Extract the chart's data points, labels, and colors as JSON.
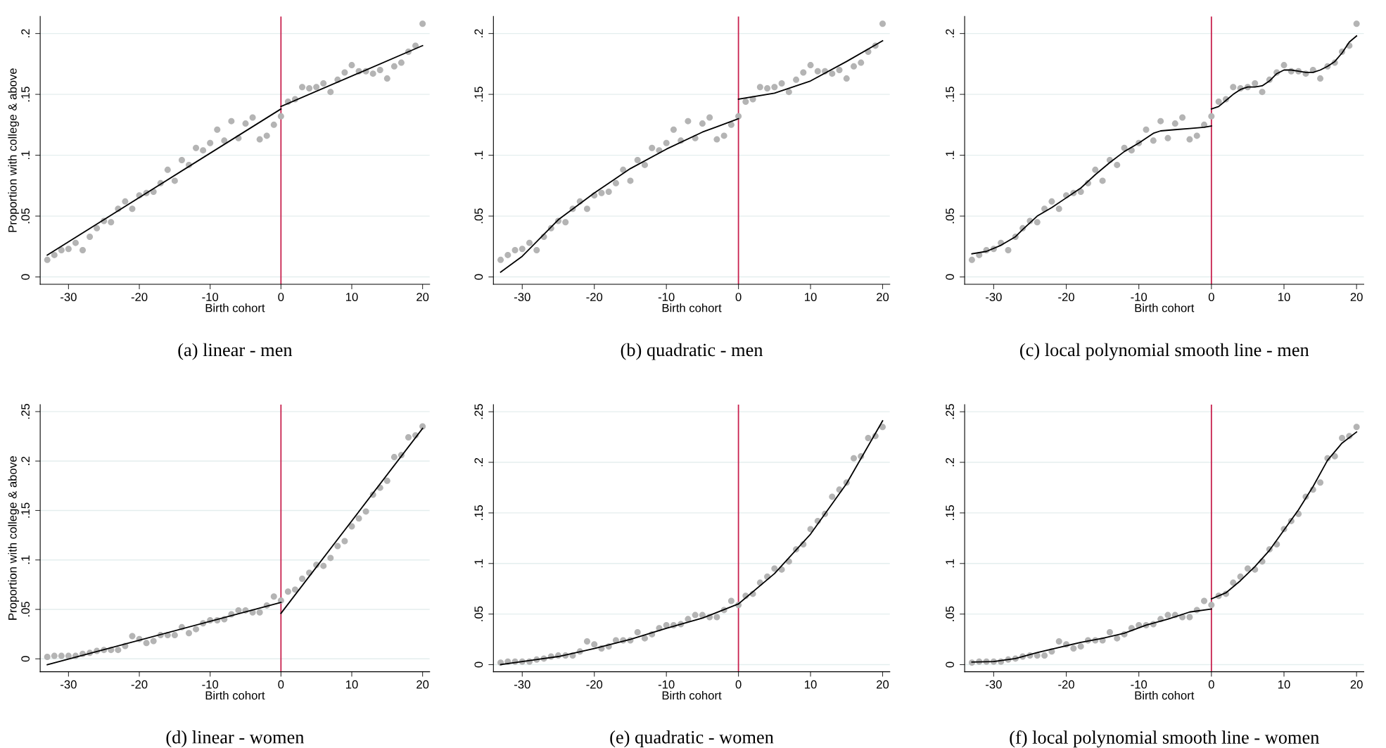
{
  "chart_data": [
    {
      "type": "scatter",
      "title": "(a) linear - men",
      "xlabel": "Birth cohort",
      "ylabel": "Proportion with college & above",
      "xlim": [
        -34,
        21
      ],
      "xticks": [
        -30,
        -20,
        -10,
        0,
        10,
        20
      ],
      "ylim": [
        -0.006,
        0.214
      ],
      "yticks": [
        {
          "value": 0,
          "label": "0"
        },
        {
          "value": 0.05,
          "label": ".05"
        },
        {
          "value": 0.1,
          "label": ".1"
        },
        {
          "value": 0.15,
          "label": ".15"
        },
        {
          "value": 0.2,
          "label": ".2"
        }
      ],
      "grid": "y",
      "x": [
        -33,
        -32,
        -31,
        -30,
        -29,
        -28,
        -27,
        -26,
        -25,
        -24,
        -23,
        -22,
        -21,
        -20,
        -19,
        -18,
        -17,
        -16,
        -15,
        -14,
        -13,
        -12,
        -11,
        -10,
        -9,
        -8,
        -7,
        -6,
        -5,
        -4,
        -3,
        -2,
        -1,
        0,
        1,
        2,
        3,
        4,
        5,
        6,
        7,
        8,
        9,
        10,
        11,
        12,
        13,
        14,
        15,
        16,
        17,
        18,
        19,
        20
      ],
      "series": [
        {
          "marker": "circle",
          "color": "#b4b4b4",
          "values": [
            0.014,
            0.018,
            0.022,
            0.023,
            0.028,
            0.022,
            0.033,
            0.04,
            0.046,
            0.045,
            0.056,
            0.062,
            0.056,
            0.067,
            0.069,
            0.07,
            0.077,
            0.088,
            0.079,
            0.096,
            0.092,
            0.106,
            0.104,
            0.11,
            0.121,
            0.112,
            0.128,
            0.114,
            0.126,
            0.131,
            0.113,
            0.116,
            0.125,
            0.132,
            0.144,
            0.146,
            0.156,
            0.155,
            0.156,
            0.159,
            0.152,
            0.162,
            0.168,
            0.174,
            0.169,
            0.169,
            0.167,
            0.17,
            0.163,
            0.173,
            0.176,
            0.185,
            0.19,
            0.208
          ]
        },
        {
          "type": "line",
          "color": "#000000",
          "x": [
            -33,
            0
          ],
          "values": [
            0.018,
            0.138
          ]
        },
        {
          "type": "line",
          "color": "#000000",
          "x": [
            0,
            20
          ],
          "values": [
            0.14,
            0.19
          ]
        }
      ],
      "ref_lines": [
        {
          "axis": "x",
          "value": 0,
          "color": "#c8224f"
        }
      ]
    },
    {
      "type": "scatter",
      "title": "(b) quadratic - men",
      "xlabel": "Birth cohort",
      "xlim": [
        -34,
        21
      ],
      "xticks": [
        -30,
        -20,
        -10,
        0,
        10,
        20
      ],
      "ylim": [
        -0.006,
        0.214
      ],
      "yticks": [
        {
          "value": 0,
          "label": "0"
        },
        {
          "value": 0.05,
          "label": ".05"
        },
        {
          "value": 0.1,
          "label": ".1"
        },
        {
          "value": 0.15,
          "label": ".15"
        },
        {
          "value": 0.2,
          "label": ".2"
        }
      ],
      "grid": "y",
      "x": [
        -33,
        -32,
        -31,
        -30,
        -29,
        -28,
        -27,
        -26,
        -25,
        -24,
        -23,
        -22,
        -21,
        -20,
        -19,
        -18,
        -17,
        -16,
        -15,
        -14,
        -13,
        -12,
        -11,
        -10,
        -9,
        -8,
        -7,
        -6,
        -5,
        -4,
        -3,
        -2,
        -1,
        0,
        1,
        2,
        3,
        4,
        5,
        6,
        7,
        8,
        9,
        10,
        11,
        12,
        13,
        14,
        15,
        16,
        17,
        18,
        19,
        20
      ],
      "series": [
        {
          "marker": "circle",
          "color": "#b4b4b4",
          "values": [
            0.014,
            0.018,
            0.022,
            0.023,
            0.028,
            0.022,
            0.033,
            0.04,
            0.046,
            0.045,
            0.056,
            0.062,
            0.056,
            0.067,
            0.069,
            0.07,
            0.077,
            0.088,
            0.079,
            0.096,
            0.092,
            0.106,
            0.104,
            0.11,
            0.121,
            0.112,
            0.128,
            0.114,
            0.126,
            0.131,
            0.113,
            0.116,
            0.125,
            0.132,
            0.144,
            0.146,
            0.156,
            0.155,
            0.156,
            0.159,
            0.152,
            0.162,
            0.168,
            0.174,
            0.169,
            0.169,
            0.167,
            0.17,
            0.163,
            0.173,
            0.176,
            0.185,
            0.19,
            0.208
          ]
        },
        {
          "type": "line",
          "color": "#000000",
          "x": [
            -33,
            -30,
            -25,
            -20,
            -15,
            -10,
            -5,
            0
          ],
          "values": [
            0.004,
            0.017,
            0.047,
            0.069,
            0.089,
            0.105,
            0.119,
            0.13
          ]
        },
        {
          "type": "line",
          "color": "#000000",
          "x": [
            0,
            5,
            10,
            15,
            20
          ],
          "values": [
            0.146,
            0.151,
            0.161,
            0.177,
            0.194
          ]
        }
      ],
      "ref_lines": [
        {
          "axis": "x",
          "value": 0,
          "color": "#c8224f"
        }
      ]
    },
    {
      "type": "scatter",
      "title": "(c) local polynomial smooth line - men",
      "xlabel": "Birth cohort",
      "xlim": [
        -34,
        21
      ],
      "xticks": [
        -30,
        -20,
        -10,
        0,
        10,
        20
      ],
      "ylim": [
        -0.006,
        0.214
      ],
      "yticks": [
        {
          "value": 0,
          "label": "0"
        },
        {
          "value": 0.05,
          "label": ".05"
        },
        {
          "value": 0.1,
          "label": ".1"
        },
        {
          "value": 0.15,
          "label": ".15"
        },
        {
          "value": 0.2,
          "label": ".2"
        }
      ],
      "grid": "y",
      "x": [
        -33,
        -32,
        -31,
        -30,
        -29,
        -28,
        -27,
        -26,
        -25,
        -24,
        -23,
        -22,
        -21,
        -20,
        -19,
        -18,
        -17,
        -16,
        -15,
        -14,
        -13,
        -12,
        -11,
        -10,
        -9,
        -8,
        -7,
        -6,
        -5,
        -4,
        -3,
        -2,
        -1,
        0,
        1,
        2,
        3,
        4,
        5,
        6,
        7,
        8,
        9,
        10,
        11,
        12,
        13,
        14,
        15,
        16,
        17,
        18,
        19,
        20
      ],
      "series": [
        {
          "marker": "circle",
          "color": "#b4b4b4",
          "values": [
            0.014,
            0.018,
            0.022,
            0.023,
            0.028,
            0.022,
            0.033,
            0.04,
            0.046,
            0.045,
            0.056,
            0.062,
            0.056,
            0.067,
            0.069,
            0.07,
            0.077,
            0.088,
            0.079,
            0.096,
            0.092,
            0.106,
            0.104,
            0.11,
            0.121,
            0.112,
            0.128,
            0.114,
            0.126,
            0.131,
            0.113,
            0.116,
            0.125,
            0.132,
            0.144,
            0.146,
            0.156,
            0.155,
            0.156,
            0.159,
            0.152,
            0.162,
            0.168,
            0.174,
            0.169,
            0.169,
            0.167,
            0.17,
            0.163,
            0.173,
            0.176,
            0.185,
            0.19,
            0.208
          ]
        },
        {
          "type": "line",
          "color": "#000000",
          "x": [
            -33,
            -31,
            -29,
            -27,
            -26,
            -24,
            -22,
            -20,
            -18,
            -16,
            -14,
            -12,
            -10,
            -8,
            -7,
            -5,
            -3,
            -1,
            0
          ],
          "values": [
            0.019,
            0.021,
            0.026,
            0.033,
            0.039,
            0.05,
            0.057,
            0.065,
            0.073,
            0.084,
            0.094,
            0.103,
            0.11,
            0.118,
            0.12,
            0.121,
            0.122,
            0.123,
            0.124
          ]
        },
        {
          "type": "line",
          "color": "#000000",
          "x": [
            0,
            1,
            2,
            3,
            4,
            5,
            6,
            7,
            8,
            9,
            10,
            11,
            12,
            13,
            14,
            15,
            16,
            17,
            18,
            19,
            20
          ],
          "values": [
            0.138,
            0.14,
            0.145,
            0.15,
            0.154,
            0.156,
            0.156,
            0.157,
            0.161,
            0.167,
            0.17,
            0.17,
            0.169,
            0.168,
            0.168,
            0.17,
            0.173,
            0.177,
            0.184,
            0.193,
            0.198
          ]
        }
      ],
      "ref_lines": [
        {
          "axis": "x",
          "value": 0,
          "color": "#c8224f"
        }
      ]
    },
    {
      "type": "scatter",
      "title": "(d) linear - women",
      "xlabel": "Birth cohort",
      "ylabel": "Proportion with college & above",
      "xlim": [
        -34,
        21
      ],
      "xticks": [
        -30,
        -20,
        -10,
        0,
        10,
        20
      ],
      "ylim": [
        -0.013,
        0.257
      ],
      "yticks": [
        {
          "value": 0,
          "label": "0"
        },
        {
          "value": 0.05,
          "label": ".05"
        },
        {
          "value": 0.1,
          "label": ".1"
        },
        {
          "value": 0.15,
          "label": ".15"
        },
        {
          "value": 0.2,
          "label": ".2"
        },
        {
          "value": 0.25,
          "label": ".25"
        }
      ],
      "grid": "y",
      "x": [
        -33,
        -32,
        -31,
        -30,
        -29,
        -28,
        -27,
        -26,
        -25,
        -24,
        -23,
        -22,
        -21,
        -20,
        -19,
        -18,
        -17,
        -16,
        -15,
        -14,
        -13,
        -12,
        -11,
        -10,
        -9,
        -8,
        -7,
        -6,
        -5,
        -4,
        -3,
        -2,
        -1,
        0,
        1,
        2,
        3,
        4,
        5,
        6,
        7,
        8,
        9,
        10,
        11,
        12,
        13,
        14,
        15,
        16,
        17,
        18,
        19,
        20
      ],
      "series": [
        {
          "marker": "circle",
          "color": "#b4b4b4",
          "values": [
            0.002,
            0.003,
            0.003,
            0.003,
            0.003,
            0.005,
            0.006,
            0.008,
            0.009,
            0.009,
            0.009,
            0.013,
            0.023,
            0.02,
            0.016,
            0.018,
            0.024,
            0.024,
            0.024,
            0.032,
            0.026,
            0.03,
            0.036,
            0.039,
            0.039,
            0.04,
            0.045,
            0.049,
            0.049,
            0.047,
            0.047,
            0.054,
            0.063,
            0.059,
            0.068,
            0.07,
            0.081,
            0.087,
            0.095,
            0.094,
            0.102,
            0.114,
            0.119,
            0.134,
            0.142,
            0.149,
            0.166,
            0.173,
            0.18,
            0.204,
            0.206,
            0.224,
            0.226,
            0.235
          ]
        },
        {
          "type": "line",
          "color": "#000000",
          "x": [
            -33,
            0
          ],
          "values": [
            -0.006,
            0.057
          ]
        },
        {
          "type": "line",
          "color": "#000000",
          "x": [
            0,
            20
          ],
          "values": [
            0.046,
            0.233
          ]
        }
      ],
      "ref_lines": [
        {
          "axis": "x",
          "value": 0,
          "color": "#c8224f"
        }
      ]
    },
    {
      "type": "scatter",
      "title": "(e) quadratic - women",
      "xlabel": "Birth cohort",
      "xlim": [
        -34,
        21
      ],
      "xticks": [
        -30,
        -20,
        -10,
        0,
        10,
        20
      ],
      "ylim": [
        -0.007,
        0.257
      ],
      "yticks": [
        {
          "value": 0,
          "label": "0"
        },
        {
          "value": 0.05,
          "label": ".05"
        },
        {
          "value": 0.1,
          "label": ".1"
        },
        {
          "value": 0.15,
          "label": ".15"
        },
        {
          "value": 0.2,
          "label": ".2"
        },
        {
          "value": 0.25,
          "label": ".25"
        }
      ],
      "grid": "y",
      "x": [
        -33,
        -32,
        -31,
        -30,
        -29,
        -28,
        -27,
        -26,
        -25,
        -24,
        -23,
        -22,
        -21,
        -20,
        -19,
        -18,
        -17,
        -16,
        -15,
        -14,
        -13,
        -12,
        -11,
        -10,
        -9,
        -8,
        -7,
        -6,
        -5,
        -4,
        -3,
        -2,
        -1,
        0,
        1,
        2,
        3,
        4,
        5,
        6,
        7,
        8,
        9,
        10,
        11,
        12,
        13,
        14,
        15,
        16,
        17,
        18,
        19,
        20
      ],
      "series": [
        {
          "marker": "circle",
          "color": "#b4b4b4",
          "values": [
            0.002,
            0.003,
            0.003,
            0.003,
            0.003,
            0.005,
            0.006,
            0.008,
            0.009,
            0.009,
            0.009,
            0.013,
            0.023,
            0.02,
            0.016,
            0.018,
            0.024,
            0.024,
            0.024,
            0.032,
            0.026,
            0.03,
            0.036,
            0.039,
            0.039,
            0.04,
            0.045,
            0.049,
            0.049,
            0.047,
            0.047,
            0.054,
            0.063,
            0.059,
            0.068,
            0.07,
            0.081,
            0.087,
            0.095,
            0.094,
            0.102,
            0.114,
            0.119,
            0.134,
            0.142,
            0.149,
            0.166,
            0.173,
            0.18,
            0.204,
            0.206,
            0.224,
            0.226,
            0.235
          ]
        },
        {
          "type": "line",
          "color": "#000000",
          "x": [
            -33,
            -25,
            -20,
            -15,
            -10,
            -5,
            0
          ],
          "values": [
            0.0,
            0.008,
            0.016,
            0.025,
            0.036,
            0.046,
            0.06
          ]
        },
        {
          "type": "line",
          "color": "#000000",
          "x": [
            0,
            5,
            10,
            15,
            20
          ],
          "values": [
            0.06,
            0.09,
            0.129,
            0.179,
            0.241
          ]
        }
      ],
      "ref_lines": [
        {
          "axis": "x",
          "value": 0,
          "color": "#c8224f"
        }
      ]
    },
    {
      "type": "scatter",
      "title": "(f) local polynomial smooth line - women",
      "xlabel": "Birth cohort",
      "xlim": [
        -34,
        21
      ],
      "xticks": [
        -30,
        -20,
        -10,
        0,
        10,
        20
      ],
      "ylim": [
        -0.007,
        0.257
      ],
      "yticks": [
        {
          "value": 0,
          "label": "0"
        },
        {
          "value": 0.05,
          "label": ".05"
        },
        {
          "value": 0.1,
          "label": ".1"
        },
        {
          "value": 0.15,
          "label": ".15"
        },
        {
          "value": 0.2,
          "label": ".2"
        },
        {
          "value": 0.25,
          "label": ".25"
        }
      ],
      "grid": "y",
      "x": [
        -33,
        -32,
        -31,
        -30,
        -29,
        -28,
        -27,
        -26,
        -25,
        -24,
        -23,
        -22,
        -21,
        -20,
        -19,
        -18,
        -17,
        -16,
        -15,
        -14,
        -13,
        -12,
        -11,
        -10,
        -9,
        -8,
        -7,
        -6,
        -5,
        -4,
        -3,
        -2,
        -1,
        0,
        1,
        2,
        3,
        4,
        5,
        6,
        7,
        8,
        9,
        10,
        11,
        12,
        13,
        14,
        15,
        16,
        17,
        18,
        19,
        20
      ],
      "series": [
        {
          "marker": "circle",
          "color": "#b4b4b4",
          "values": [
            0.002,
            0.003,
            0.003,
            0.003,
            0.003,
            0.005,
            0.006,
            0.008,
            0.009,
            0.009,
            0.009,
            0.013,
            0.023,
            0.02,
            0.016,
            0.018,
            0.024,
            0.024,
            0.024,
            0.032,
            0.026,
            0.03,
            0.036,
            0.039,
            0.039,
            0.04,
            0.045,
            0.049,
            0.049,
            0.047,
            0.047,
            0.054,
            0.063,
            0.059,
            0.068,
            0.07,
            0.081,
            0.087,
            0.095,
            0.094,
            0.102,
            0.114,
            0.119,
            0.134,
            0.142,
            0.149,
            0.166,
            0.173,
            0.18,
            0.204,
            0.206,
            0.224,
            0.226,
            0.235
          ]
        },
        {
          "type": "line",
          "color": "#000000",
          "x": [
            -33,
            -30,
            -27,
            -24,
            -21,
            -18,
            -15,
            -12,
            -9,
            -6,
            -3,
            0
          ],
          "values": [
            0.0025,
            0.003,
            0.006,
            0.012,
            0.017,
            0.022,
            0.026,
            0.031,
            0.039,
            0.045,
            0.052,
            0.055
          ]
        },
        {
          "type": "line",
          "color": "#000000",
          "x": [
            0,
            2,
            4,
            6,
            8,
            10,
            12,
            14,
            16,
            18,
            20
          ],
          "values": [
            0.065,
            0.071,
            0.083,
            0.097,
            0.113,
            0.133,
            0.153,
            0.176,
            0.202,
            0.219,
            0.23
          ]
        }
      ],
      "ref_lines": [
        {
          "axis": "x",
          "value": 0,
          "color": "#c8224f"
        }
      ]
    }
  ]
}
